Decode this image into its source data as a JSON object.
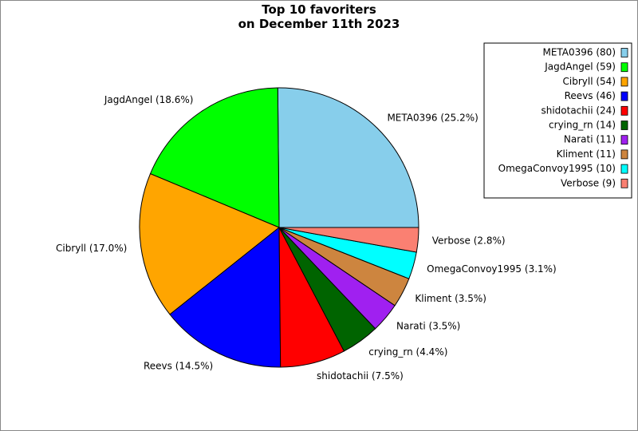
{
  "chart_data": {
    "type": "pie",
    "title": "Top 10 favoriters\non December 11th 2023",
    "labels": [
      "META0396 (80)",
      "JagdAngel (59)",
      "Cibryll (54)",
      "Reevs (46)",
      "shidotachii (24)",
      "crying_rn (14)",
      "Narati (11)",
      "Kliment (11)",
      "OmegaConvoy1995 (10)",
      "Verbose (9)"
    ],
    "values": [
      80,
      59,
      54,
      46,
      24,
      14,
      11,
      11,
      10,
      9
    ],
    "value_labels": [
      "META0396 (25.2%)",
      "JagdAngel (18.6%)",
      "Cibryll (17.0%)",
      "Reevs (14.5%)",
      "shidotachii (7.5%)",
      "crying_rn (4.4%)",
      "Narati (3.5%)",
      "Kliment (3.5%)",
      "OmegaConvoy1995 (3.1%)",
      "Verbose (2.8%)"
    ],
    "colors": [
      "#87ceeb",
      "#00ff00",
      "#ffa500",
      "#0000ff",
      "#ff0000",
      "#006400",
      "#a020f0",
      "#cd853f",
      "#00ffff",
      "#fa8072"
    ],
    "legend": "upper right"
  }
}
